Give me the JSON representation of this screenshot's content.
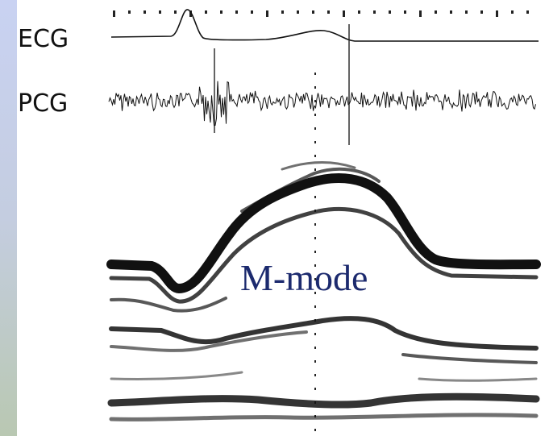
{
  "labels": {
    "ecg": "ECG",
    "pcg": "PCG",
    "mmode": "M-mode"
  }
}
